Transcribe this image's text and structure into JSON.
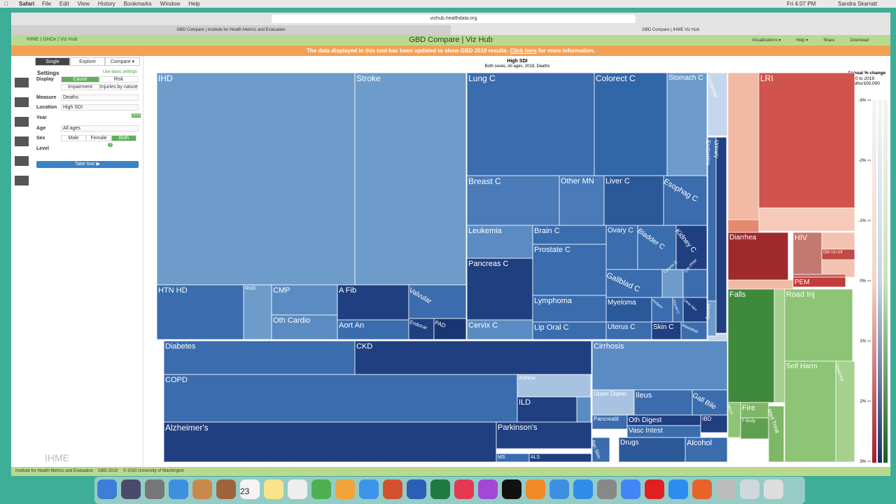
{
  "menu_bar": {
    "app": "Safari",
    "items": [
      "File",
      "Edit",
      "View",
      "History",
      "Bookmarks",
      "Window",
      "Help"
    ],
    "clock": "Fri 4:07 PM",
    "user": "Sandra Skarratt"
  },
  "browser": {
    "url": "vizhub.healthdata.org",
    "tabs": [
      "GBD Compare | Institute for Health Metrics and Evaluation",
      "GBD Compare | IHME Viz Hub"
    ]
  },
  "header": {
    "links": "IHME | GHDx | Viz Hub",
    "title": "GBD Compare | Viz Hub",
    "menu": [
      "Visualizations ▾",
      "Help ▾",
      "Share",
      "Download"
    ]
  },
  "banner": {
    "text": "The data displayed in this tool has been updated to show GBD 2019 results.",
    "link": "Click here",
    "after": "for more information."
  },
  "sidebar": {
    "tabs": [
      "Single",
      "Explore",
      "Compare ▾"
    ],
    "settings": "Settings",
    "basic": "Use basic settings",
    "display": {
      "label": "Display",
      "options": [
        "Cause",
        "Risk",
        "Impairment",
        "Injuries by nature"
      ]
    },
    "measure": {
      "label": "Measure",
      "value": "Deaths"
    },
    "location": {
      "label": "Location",
      "value": "High SDI"
    },
    "year": {
      "label": "Year",
      "value": "2019"
    },
    "age": {
      "label": "Age",
      "value": "All ages"
    },
    "sex": {
      "label": "Sex",
      "options": [
        "Male",
        "Female",
        "Both"
      ]
    },
    "level": {
      "label": "Level",
      "value": "3"
    },
    "tour": "Take tour ▶",
    "logo": "IHME"
  },
  "chart": {
    "title": "High SDI",
    "subtitle": "Both sexes, All ages, 2019, Deaths",
    "cells": [
      {
        "label": "IHD",
        "color": "#6d9ccb"
      },
      {
        "label": "Stroke",
        "color": "#6d9ccb"
      },
      {
        "label": "HTN HD",
        "color": "#3a6cae"
      },
      {
        "label": "RHD",
        "color": "#6d9ccb"
      },
      {
        "label": "CMP",
        "color": "#5a8bc2"
      },
      {
        "label": "Oth Cardio",
        "color": "#5a8bc2"
      },
      {
        "label": "A Fib",
        "color": "#1f3f80"
      },
      {
        "label": "Aort An",
        "color": "#3a6cae"
      },
      {
        "label": "Valvular",
        "color": "#3a6cae"
      },
      {
        "label": "Endocar",
        "color": "#1f3f80"
      },
      {
        "label": "PAD",
        "color": "#1a3573"
      },
      {
        "label": "Lung C",
        "color": "#3a6cae"
      },
      {
        "label": "Colorect C",
        "color": "#3166a8"
      },
      {
        "label": "Stomach C",
        "color": "#6d9ccb"
      },
      {
        "label": "Breast C",
        "color": "#4a7ab8"
      },
      {
        "label": "Other MN",
        "color": "#4a7ab8"
      },
      {
        "label": "Liver C",
        "color": "#2b5899"
      },
      {
        "label": "Esophag C",
        "color": "#3a6cae"
      },
      {
        "label": "Leukemia",
        "color": "#5a8bc2"
      },
      {
        "label": "Pancreas C",
        "color": "#1f3f80"
      },
      {
        "label": "Cervix C",
        "color": "#5a8bc2"
      },
      {
        "label": "Brain C",
        "color": "#3a6cae"
      },
      {
        "label": "Prostate C",
        "color": "#3a6cae"
      },
      {
        "label": "Lymphoma",
        "color": "#3a6cae"
      },
      {
        "label": "Lip Oral C",
        "color": "#3a6cae"
      },
      {
        "label": "Ovary C",
        "color": "#3a6cae"
      },
      {
        "label": "Bladder C",
        "color": "#3a6cae"
      },
      {
        "label": "Kidney C",
        "color": "#1f3f80"
      },
      {
        "label": "Gallblad C",
        "color": "#3a6cae"
      },
      {
        "label": "Larynx C",
        "color": "#6d9ccb"
      },
      {
        "label": "Oth Phar",
        "color": "#3a6cae"
      },
      {
        "label": "Myeloma",
        "color": "#2b5899"
      },
      {
        "label": "Hodgkin",
        "color": "#3a6cae"
      },
      {
        "label": "Thyroid C",
        "color": "#3a6cae"
      },
      {
        "label": "Other Neo",
        "color": "#1f3f80"
      },
      {
        "label": "Uterus C",
        "color": "#3a6cae"
      },
      {
        "label": "Skin C",
        "color": "#1f3f80"
      },
      {
        "label": "Mesothel",
        "color": "#3a6cae"
      },
      {
        "label": "Congenital",
        "color": "#c5d7ec"
      },
      {
        "label": "Endocrine",
        "color": "#3a6cae"
      },
      {
        "label": "Urinary",
        "color": "#1f3f80"
      },
      {
        "label": "Hemog",
        "color": "#6d9ccb"
      },
      {
        "label": "Diabetes",
        "color": "#3a6cae"
      },
      {
        "label": "CKD",
        "color": "#1f3f80"
      },
      {
        "label": "COPD",
        "color": "#3a6cae"
      },
      {
        "label": "Asthma",
        "color": "#a8c3e2"
      },
      {
        "label": "ILD",
        "color": "#1f3f80"
      },
      {
        "label": "Alzheimer's",
        "color": "#1f3f80"
      },
      {
        "label": "Parkinson's",
        "color": "#1f3f80"
      },
      {
        "label": "MS",
        "color": "#3a6cae"
      },
      {
        "label": "ALS",
        "color": "#1f3f80"
      },
      {
        "label": "Cirrhosis",
        "color": "#5a8bc2"
      },
      {
        "label": "Upper Digest",
        "color": "#a8c3e2"
      },
      {
        "label": "Ileus",
        "color": "#3a6cae"
      },
      {
        "label": "Gall Bile",
        "color": "#3a6cae"
      },
      {
        "label": "Pancreatit",
        "color": "#3a6cae"
      },
      {
        "label": "Oth Digest",
        "color": "#1f3f80"
      },
      {
        "label": "Vasc Intest",
        "color": "#3a6cae"
      },
      {
        "label": "IBD",
        "color": "#1f3f80"
      },
      {
        "label": "Bac Skin",
        "color": "#3a6cae"
      },
      {
        "label": "Drugs",
        "color": "#2b5899"
      },
      {
        "label": "Alcohol",
        "color": "#3a6cae"
      },
      {
        "label": "LRI",
        "color": "#d0534c"
      },
      {
        "label": "Diarrhea",
        "color": "#9e2a2e"
      },
      {
        "label": "HIV",
        "color": "#c27a70"
      },
      {
        "label": "Oth Un Inf",
        "color": "#c04a44"
      },
      {
        "label": "PEM",
        "color": "#c23a3a"
      },
      {
        "label": "Falls",
        "color": "#3f8a3a"
      },
      {
        "label": "Road Inj",
        "color": "#8dc476"
      },
      {
        "label": "Self Harm",
        "color": "#8dc476"
      },
      {
        "label": "Violence",
        "color": "#a5d08e"
      },
      {
        "label": "Fire",
        "color": "#7db767"
      },
      {
        "label": "F Body",
        "color": "#5fa050"
      },
      {
        "label": "Med Treat",
        "color": "#7db767"
      },
      {
        "label": "Mech",
        "color": "#8dc476"
      }
    ]
  },
  "legend": {
    "title": "Annual % change",
    "range": "1990 to 2019",
    "unit": "Deaths/100,000",
    "ticks": [
      "-3%",
      "-2%",
      "-1%",
      "0%",
      "1%",
      "2%",
      "3%"
    ]
  },
  "footer": [
    "Institute for Health Metrics and Evaluation",
    "GBD 2019",
    "© 2020 University of Washington"
  ],
  "dock": {
    "calendar": "23"
  }
}
